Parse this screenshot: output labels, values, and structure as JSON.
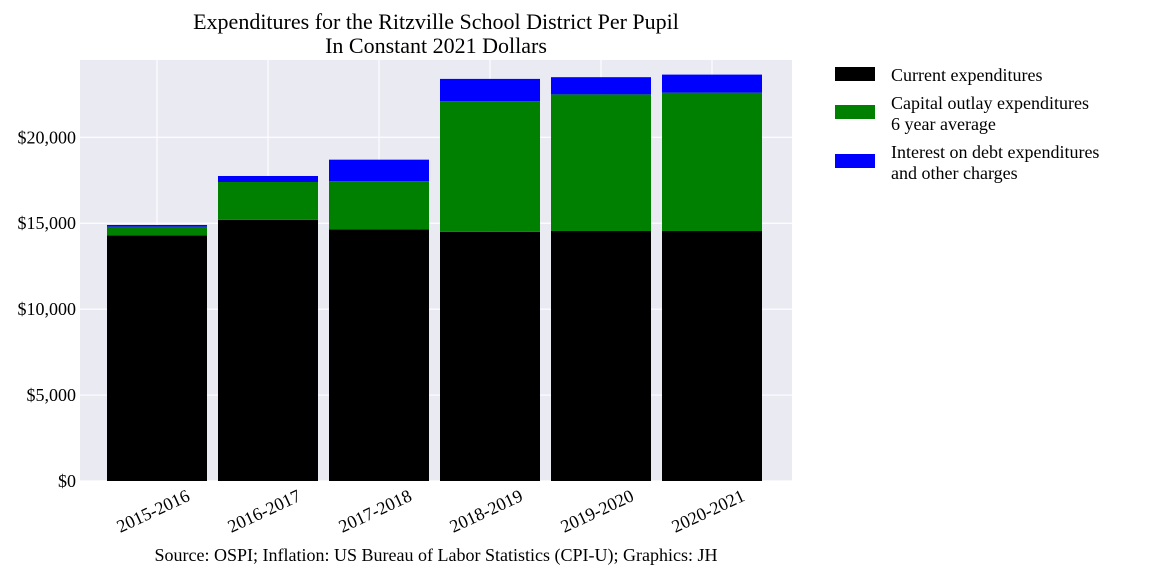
{
  "chart_data": {
    "type": "bar",
    "stacked": true,
    "title": "Expenditures for the Ritzville School District Per Pupil",
    "subtitle": "In Constant 2021 Dollars",
    "categories": [
      "2015-2016",
      "2016-2017",
      "2017-2018",
      "2018-2019",
      "2019-2020",
      "2020-2021"
    ],
    "series": [
      {
        "name": "Current expenditures",
        "color": "#000000",
        "values": [
          14300,
          15200,
          14650,
          14500,
          14550,
          14550
        ]
      },
      {
        "name": "Capital outlay expenditures",
        "name_line2": "6 year average",
        "color": "#008000",
        "values": [
          500,
          2200,
          2800,
          7600,
          7950,
          8050
        ]
      },
      {
        "name": "Interest on debt expenditures",
        "name_line2": "and other charges",
        "color": "#0000ff",
        "values": [
          100,
          350,
          1250,
          1300,
          1000,
          1050
        ]
      }
    ],
    "yticks": [
      0,
      5000,
      10000,
      15000,
      20000
    ],
    "ytick_labels": [
      "$0",
      "$5,000",
      "$10,000",
      "$15,000",
      "$20,000"
    ],
    "ylim": [
      0,
      24500
    ],
    "grid": true,
    "legend_position": "outside-right",
    "xlabel": "",
    "ylabel": "",
    "footer": "Source: OSPI; Inflation: US Bureau of Labor Statistics (CPI-U); Graphics: JH"
  }
}
